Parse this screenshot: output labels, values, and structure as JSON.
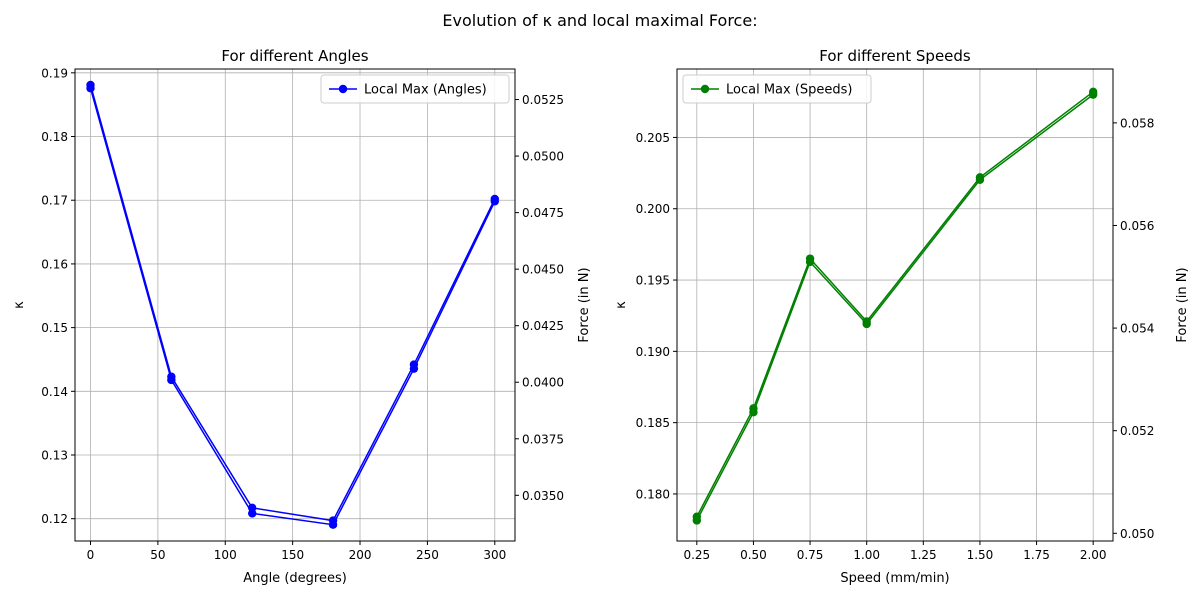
{
  "figure": {
    "suptitle": "Evolution of κ and local maximal Force:"
  },
  "chart_data": [
    {
      "type": "line",
      "title": "For different Angles",
      "xlabel": "Angle (degrees)",
      "ylabel": "κ",
      "y2label": "Force (in N)",
      "xlim": [
        -11.5,
        315
      ],
      "ylim": [
        0.1165,
        0.1906
      ],
      "y2lim": [
        0.03298,
        0.05385
      ],
      "xticks": [
        0,
        50,
        100,
        150,
        200,
        250,
        300
      ],
      "xtick_labels": [
        "0",
        "50",
        "100",
        "150",
        "200",
        "250",
        "300"
      ],
      "yticks": [
        0.12,
        0.13,
        0.14,
        0.15,
        0.16,
        0.17,
        0.18,
        0.19
      ],
      "ytick_labels": [
        "0.12",
        "0.13",
        "0.14",
        "0.15",
        "0.16",
        "0.17",
        "0.18",
        "0.19"
      ],
      "y2ticks": [
        0.035,
        0.0375,
        0.04,
        0.0425,
        0.045,
        0.0475,
        0.05,
        0.0525
      ],
      "y2tick_labels": [
        "0.0350",
        "0.0375",
        "0.0400",
        "0.0425",
        "0.0450",
        "0.0475",
        "0.0500",
        "0.0525"
      ],
      "grid": true,
      "legend_position": "upper right",
      "series": [
        {
          "name": "Local Max (Angles)",
          "color": "#0000ff",
          "x": [
            0,
            60,
            120,
            180,
            240,
            300
          ],
          "y": [
            0.1881,
            0.1423,
            0.1217,
            0.1197,
            0.1442,
            0.1702
          ],
          "axis": "left"
        },
        {
          "color": "#0000ff",
          "x": [
            0,
            60,
            120,
            180,
            240,
            300
          ],
          "y": [
            0.053,
            0.0401,
            0.0342,
            0.0337,
            0.0406,
            0.048
          ],
          "axis": "right"
        }
      ]
    },
    {
      "type": "line",
      "title": "For different Speeds",
      "xlabel": "Speed (mm/min)",
      "ylabel": "κ",
      "y2label": "Force (in N)",
      "xlim": [
        0.1625,
        2.0875
      ],
      "ylim": [
        0.1767,
        0.2098
      ],
      "y2lim": [
        0.04985,
        0.05905
      ],
      "xticks": [
        0.25,
        0.5,
        0.75,
        1.0,
        1.25,
        1.5,
        1.75,
        2.0
      ],
      "xtick_labels": [
        "0.25",
        "0.50",
        "0.75",
        "1.00",
        "1.25",
        "1.50",
        "1.75",
        "2.00"
      ],
      "yticks": [
        0.18,
        0.185,
        0.19,
        0.195,
        0.2,
        0.205
      ],
      "ytick_labels": [
        "0.180",
        "0.185",
        "0.190",
        "0.195",
        "0.200",
        "0.205"
      ],
      "y2ticks": [
        0.05,
        0.052,
        0.054,
        0.056,
        0.058
      ],
      "y2tick_labels": [
        "0.050",
        "0.052",
        "0.054",
        "0.056",
        "0.058"
      ],
      "grid": true,
      "legend_position": "upper left",
      "series": [
        {
          "name": "Local Max (Speeds)",
          "color": "#008000",
          "x": [
            0.25,
            0.5,
            0.75,
            1.0,
            1.5,
            2.0
          ],
          "y": [
            0.1784,
            0.186,
            0.1965,
            0.1921,
            0.2022,
            0.2082
          ],
          "axis": "left"
        },
        {
          "color": "#008000",
          "x": [
            0.25,
            0.5,
            0.75,
            1.0,
            1.5,
            2.0
          ],
          "y": [
            0.05025,
            0.05236,
            0.05529,
            0.05408,
            0.05689,
            0.05855
          ],
          "axis": "right"
        }
      ]
    }
  ]
}
